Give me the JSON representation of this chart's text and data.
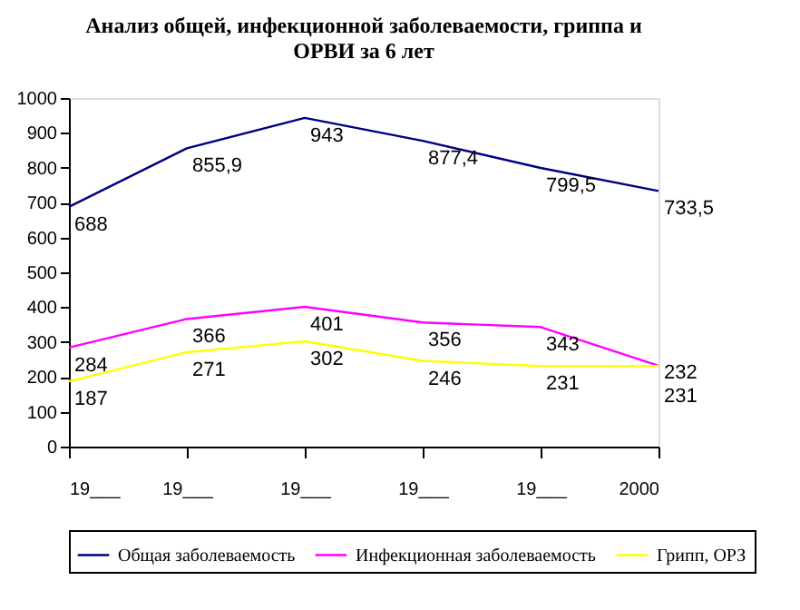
{
  "chart_data": {
    "type": "line",
    "title": [
      "Анализ общей, инфекционной заболеваемости, гриппа и",
      "ОРВИ за 6 лет"
    ],
    "categories": [
      "19___",
      "19___",
      "19___",
      "19___",
      "19___",
      "2000"
    ],
    "series": [
      {
        "name": "Общая заболеваемость",
        "color": "#000080",
        "values": [
          688,
          855.9,
          943,
          877.4,
          799.5,
          733.5
        ],
        "value_labels": [
          "688",
          "855,9",
          "943",
          "877,4",
          "799,5",
          "733,5"
        ]
      },
      {
        "name": "Инфекционная заболеваемость",
        "color": "#ff00ff",
        "values": [
          284,
          366,
          401,
          356,
          343,
          232
        ]
      },
      {
        "name": "Грипп, ОРЗ",
        "color": "#ffff00",
        "values": [
          187,
          271,
          302,
          246,
          231,
          231
        ]
      }
    ],
    "ylim": [
      0,
      1000
    ],
    "yticks": [
      0,
      100,
      200,
      300,
      400,
      500,
      600,
      700,
      800,
      900,
      1000
    ],
    "grid": false,
    "legend": "bottom",
    "data_labels": true,
    "marker": "none",
    "line_style": "solid"
  }
}
